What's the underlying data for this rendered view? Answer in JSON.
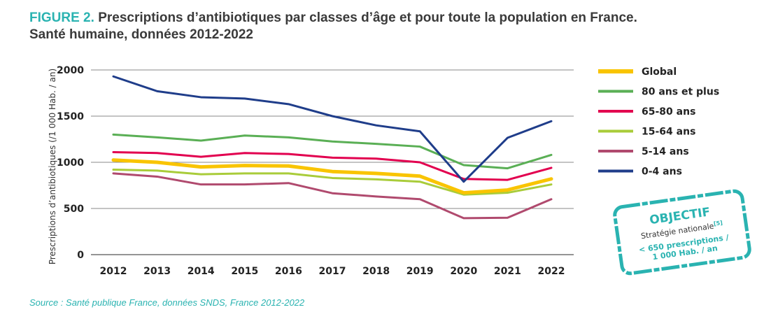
{
  "header": {
    "figure_label": "FIGURE 2.",
    "title_line1": "Prescriptions d’antibiotiques par classes d’âge et pour toute la population en France.",
    "title_line2": "Santé humaine, données 2012-2022"
  },
  "source": "Source : Santé publique France, données SNDS, France 2012-2022",
  "stamp": {
    "title": "OBJECTIF",
    "subtitle": "Stratégie nationale",
    "ref": "[5]",
    "value_line1": "< 650 prescriptions /",
    "value_line2": "1 000 Hab. / an",
    "color": "#2ab3b1"
  },
  "chart_data": {
    "type": "line",
    "title": "",
    "xlabel": "",
    "ylabel": "Prescriptions d’antibiotiques (/1 000 Hab. / an)",
    "ylim": [
      0,
      2000
    ],
    "yticks": [
      0,
      500,
      1000,
      1500,
      2000
    ],
    "grid": true,
    "legend_position": "right",
    "x": [
      "2012",
      "2013",
      "2014",
      "2015",
      "2016",
      "2017",
      "2018",
      "2019",
      "2020",
      "2021",
      "2022"
    ],
    "series": [
      {
        "name": "Global",
        "color": "#f9c400",
        "width": 5,
        "values": [
          1025,
          1000,
          950,
          965,
          960,
          900,
          880,
          850,
          670,
          700,
          820
        ]
      },
      {
        "name": "80 ans et plus",
        "color": "#5aaf55",
        "width": 3,
        "values": [
          1300,
          1270,
          1235,
          1290,
          1270,
          1225,
          1200,
          1170,
          970,
          935,
          1080
        ]
      },
      {
        "name": "65-80 ans",
        "color": "#e2004f",
        "width": 3,
        "values": [
          1110,
          1100,
          1060,
          1100,
          1090,
          1050,
          1040,
          1000,
          820,
          810,
          940
        ]
      },
      {
        "name": "15-64 ans",
        "color": "#a9cc3a",
        "width": 3,
        "values": [
          920,
          910,
          870,
          880,
          880,
          830,
          815,
          790,
          650,
          670,
          760
        ]
      },
      {
        "name": "5-14 ans",
        "color": "#b04a6e",
        "width": 3,
        "values": [
          880,
          845,
          760,
          760,
          775,
          665,
          630,
          600,
          395,
          400,
          600
        ]
      },
      {
        "name": "0-4 ans",
        "color": "#1f3d8a",
        "width": 3,
        "values": [
          1930,
          1770,
          1705,
          1690,
          1630,
          1500,
          1400,
          1335,
          790,
          1265,
          1445
        ]
      }
    ]
  }
}
